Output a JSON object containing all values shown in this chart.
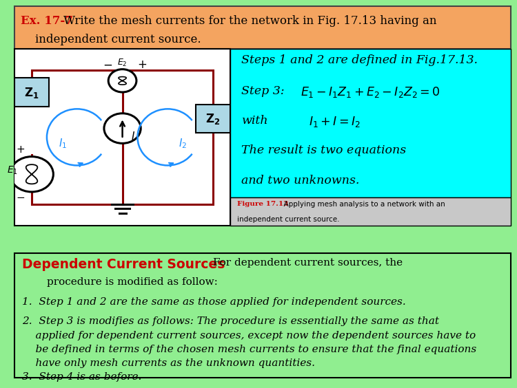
{
  "title_prefix": "Ex. 17-7",
  "title_bg": "#f4a460",
  "circuit_bg": "#ffffff",
  "steps_bg": "#00ffff",
  "bottom_bg": "#90ee90",
  "fig_caption_bg": "#c8c8c8",
  "red_color": "#cc0000",
  "black": "#000000",
  "circuit_line_color": "#8b0000",
  "z_box_color": "#add8e6",
  "mesh_color": "#1e90ff",
  "title_line1": "Write the mesh currents for the network in Fig. 17.13 having an",
  "title_line2": "    independent current source.",
  "step_line1": "Steps 1 and 2 are defined in Fig.17.13.",
  "step_line2a": "Step 3:",
  "step_line2b": "$E_1-I_1Z_1+E_2-I_2Z_2=0$",
  "step_line3a": "with",
  "step_line3b": "$I_1+I=I_2$",
  "step_line4": "The result is two equations",
  "step_line5": "and two unknowns.",
  "fig_caption_bold": "Figure 17.13",
  "fig_caption_rest": "  Applying mesh analysis to a network with an\nindependent current source.",
  "dep_title": "Dependent Current Sources",
  "dep_for": "For dependent current sources, the",
  "dep_procedure": "procedure is modified as follow:",
  "dep_item1": "1.  Step 1 and 2 are the same as those applied for independent sources.",
  "dep_item2a": "2.  Step 3 is modifies as follows: The procedure is essentially the same as that",
  "dep_item2b": "    applied for dependent current sources, except now the dependent sources have to",
  "dep_item2c": "    be defined in terms of the chosen mesh currents to ensure that the final equations",
  "dep_item2d": "    have only mesh currents as the unknown quantities.",
  "dep_item3": "3.  Step 4 is as before."
}
